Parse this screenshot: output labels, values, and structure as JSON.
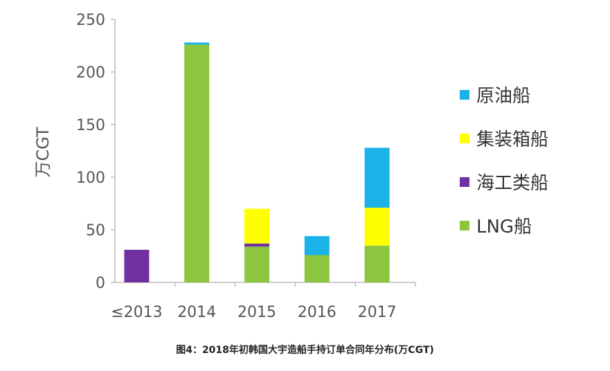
{
  "chart_data": {
    "type": "bar",
    "stacked": true,
    "title": "",
    "xlabel": "",
    "ylabel": "万CGT",
    "ylim": [
      0,
      250
    ],
    "yticks": [
      0,
      50,
      100,
      150,
      200,
      250
    ],
    "grid": false,
    "legend_position": "right",
    "categories": [
      "≤2013",
      "2014",
      "2015",
      "2016",
      "2017"
    ],
    "series": [
      {
        "name": "LNG船",
        "color": "#8cc63f",
        "values": [
          0,
          226,
          34,
          26,
          35
        ]
      },
      {
        "name": "海工类船",
        "color": "#7030a0",
        "values": [
          31,
          0,
          3,
          0,
          0
        ]
      },
      {
        "name": "集装箱船",
        "color": "#ffff00",
        "values": [
          0,
          0,
          33,
          0,
          36
        ]
      },
      {
        "name": "原油船",
        "color": "#1ab2e8",
        "values": [
          0,
          2,
          0,
          18,
          57
        ]
      }
    ],
    "legend_order": [
      "原油船",
      "集装箱船",
      "海工类船",
      "LNG船"
    ]
  },
  "caption": "图4：2018年初韩国大宇造船手持订单合同年分布(万CGT)"
}
